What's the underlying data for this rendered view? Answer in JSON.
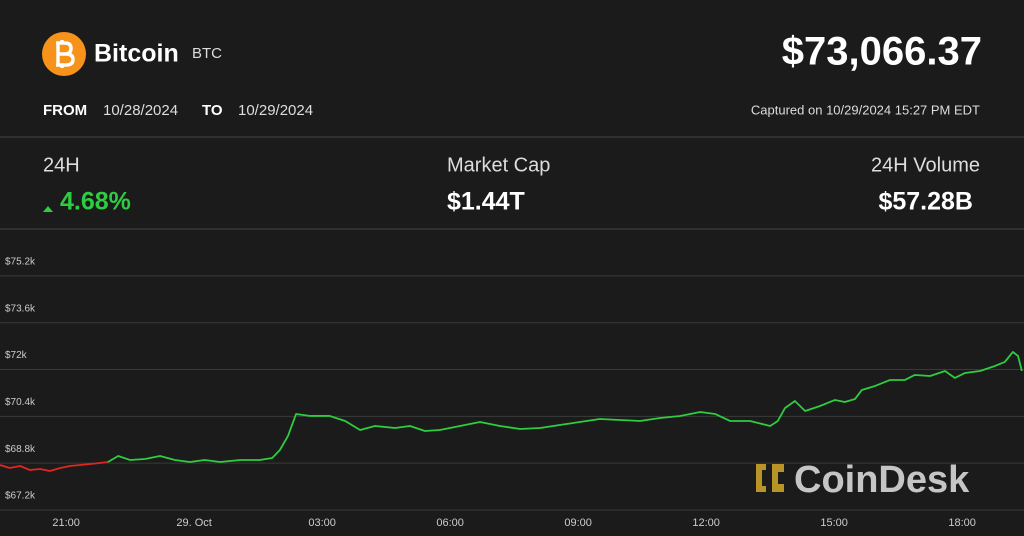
{
  "header": {
    "name": "Bitcoin",
    "symbol": "BTC",
    "price": "$73,066.37",
    "from_label": "FROM",
    "from_date": "10/28/2024",
    "to_label": "TO",
    "to_date": "10/29/2024",
    "captured": "Captured on 10/29/2024 15:27 PM EDT"
  },
  "stats": [
    {
      "label": "24H",
      "value": "4.68%"
    },
    {
      "label": "Market Cap",
      "value": "$1.44T"
    },
    {
      "label": "24H Volume",
      "value": "$57.28B"
    }
  ],
  "watermark": "CoinDesk",
  "chart_data": {
    "type": "line",
    "series": [
      {
        "color": "#e0261f",
        "x": [
          19.45,
          19.68,
          19.92,
          20.15,
          20.39,
          20.62,
          20.86,
          21.09,
          21.33,
          21.56,
          21.79,
          21.98
        ],
        "values": [
          68738,
          68636,
          68704,
          68567,
          68601,
          68533,
          68636,
          68704,
          68738,
          68772,
          68807,
          68841
        ]
      },
      {
        "color": "#2ecc40",
        "x": [
          21.98,
          22.22,
          22.5,
          22.85,
          23.2,
          23.55,
          23.9,
          24.25,
          24.61,
          25.08,
          25.54,
          25.83,
          26.01,
          26.2,
          26.39,
          26.72,
          27.18,
          27.54,
          27.89,
          28.24,
          28.71,
          29.06,
          29.41,
          29.76,
          30.23,
          30.7,
          31.17,
          31.64,
          32.11,
          32.57,
          33.04,
          33.51,
          33.98,
          34.45,
          34.92,
          35.39,
          35.86,
          36.21,
          36.56,
          37.03,
          37.5,
          37.68,
          37.85,
          38.08,
          38.32,
          38.67,
          39.02,
          39.25,
          39.49,
          39.65,
          39.96,
          40.31,
          40.66,
          40.89,
          41.25,
          41.6,
          41.83,
          42.07,
          42.42,
          42.77,
          43,
          43.19,
          43.31,
          43.4
        ],
        "values": [
          68841,
          69046,
          68909,
          68943,
          69046,
          68909,
          68841,
          68909,
          68841,
          68909,
          68909,
          68978,
          69251,
          69730,
          70482,
          70414,
          70414,
          70243,
          69935,
          70072,
          70003,
          70072,
          69901,
          69935,
          70072,
          70208,
          70072,
          69969,
          70003,
          70106,
          70208,
          70311,
          70277,
          70243,
          70345,
          70414,
          70550,
          70482,
          70243,
          70243,
          70072,
          70243,
          70687,
          70926,
          70584,
          70755,
          70961,
          70892,
          70995,
          71302,
          71439,
          71644,
          71644,
          71815,
          71781,
          71952,
          71713,
          71883,
          71952,
          72123,
          72260,
          72602,
          72465,
          71952
        ]
      }
    ],
    "xlim": [
      19.45,
      43.45
    ],
    "xticks": [
      {
        "value": 21,
        "label": "21:00"
      },
      {
        "value": 24,
        "label": "29. Oct"
      },
      {
        "value": 27,
        "label": "03:00"
      },
      {
        "value": 30,
        "label": "06:00"
      },
      {
        "value": 33,
        "label": "09:00"
      },
      {
        "value": 36,
        "label": "12:00"
      },
      {
        "value": 39,
        "label": "15:00"
      },
      {
        "value": 42,
        "label": "18:00"
      }
    ],
    "ylim": [
      67200,
      76770
    ],
    "yticks": [
      {
        "value": 67200,
        "label": "$67.2k"
      },
      {
        "value": 68800,
        "label": "$68.8k"
      },
      {
        "value": 70400,
        "label": "$70.4k"
      },
      {
        "value": 72000,
        "label": "$72k"
      },
      {
        "value": 73600,
        "label": "$73.6k"
      },
      {
        "value": 75200,
        "label": "$75.2k"
      }
    ],
    "grid": true
  }
}
